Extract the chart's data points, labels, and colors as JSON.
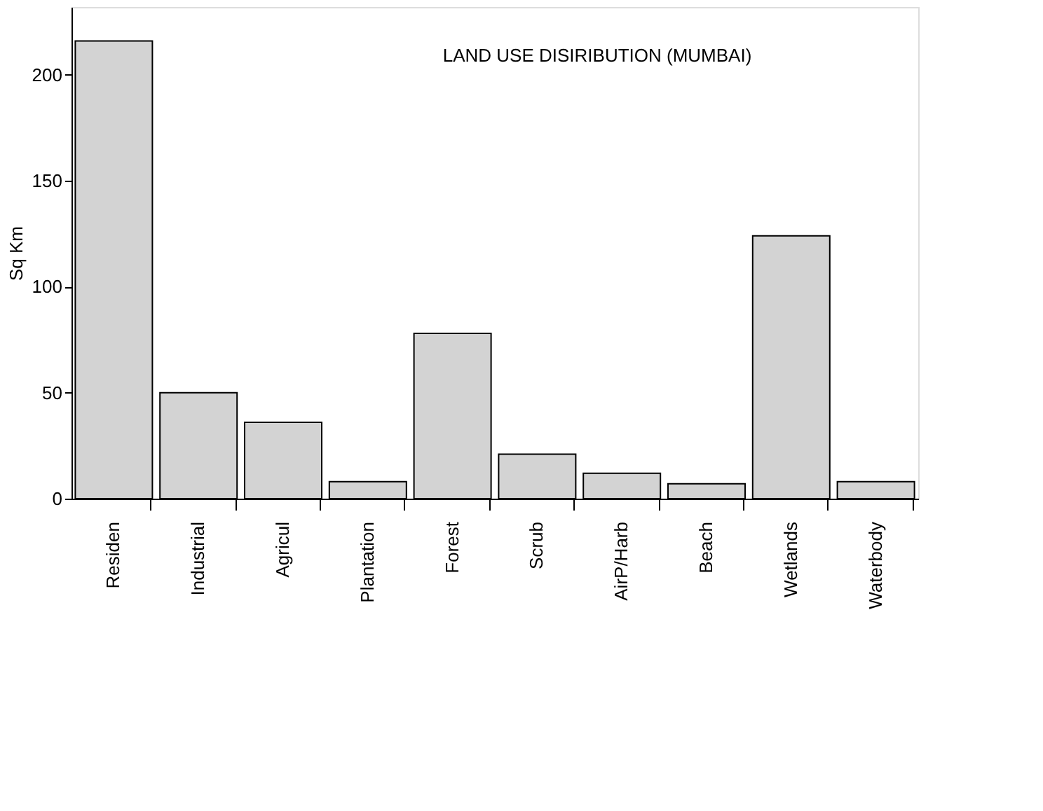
{
  "chart_data": {
    "type": "bar",
    "title": "LAND USE DISIRIBUTION (MUMBAI)",
    "ylabel": "Sq Km",
    "categories": [
      "Residen",
      "Industrial",
      "Agricul",
      "Plantation",
      "Forest",
      "Scrub",
      "AirP/Harb",
      "Beach",
      "Wetlands",
      "Waterbody"
    ],
    "values": [
      216,
      50,
      36,
      8,
      78,
      21,
      12,
      7,
      124,
      8
    ],
    "color": "#d3d3d3",
    "ylim": [
      0,
      232
    ],
    "yticks": [
      0,
      50,
      100,
      150,
      200
    ],
    "grid": false
  }
}
